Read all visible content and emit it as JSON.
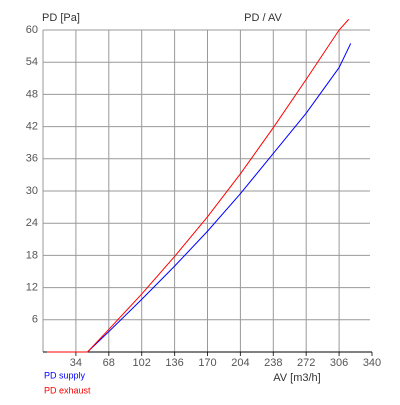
{
  "chart_data": {
    "type": "line",
    "title": "PD / AV",
    "y_label": "PD [Pa]",
    "x_label": "AV [m3/h]",
    "xlim": [
      0,
      340
    ],
    "xticks": [
      34,
      68,
      102,
      136,
      170,
      204,
      238,
      272,
      306,
      340
    ],
    "ylim": [
      0,
      60
    ],
    "yticks": [
      6,
      12,
      18,
      24,
      30,
      36,
      42,
      48,
      54,
      60
    ],
    "grid": true,
    "series": [
      {
        "name": "PD supply",
        "color": "#0000ff",
        "x": [
          4,
          46,
          68,
          102,
          136,
          170,
          204,
          238,
          272,
          306,
          318
        ],
        "values": [
          0,
          0,
          3.8,
          9.8,
          16,
          22.5,
          29.5,
          37,
          44.5,
          53,
          57.5
        ]
      },
      {
        "name": "PD exhaust",
        "color": "#ff0000",
        "x": [
          4,
          46,
          68,
          102,
          136,
          170,
          204,
          238,
          272,
          306,
          316
        ],
        "values": [
          0,
          0,
          4.2,
          10.8,
          17.8,
          25.2,
          33.2,
          41.8,
          50.8,
          60,
          62
        ]
      }
    ]
  }
}
